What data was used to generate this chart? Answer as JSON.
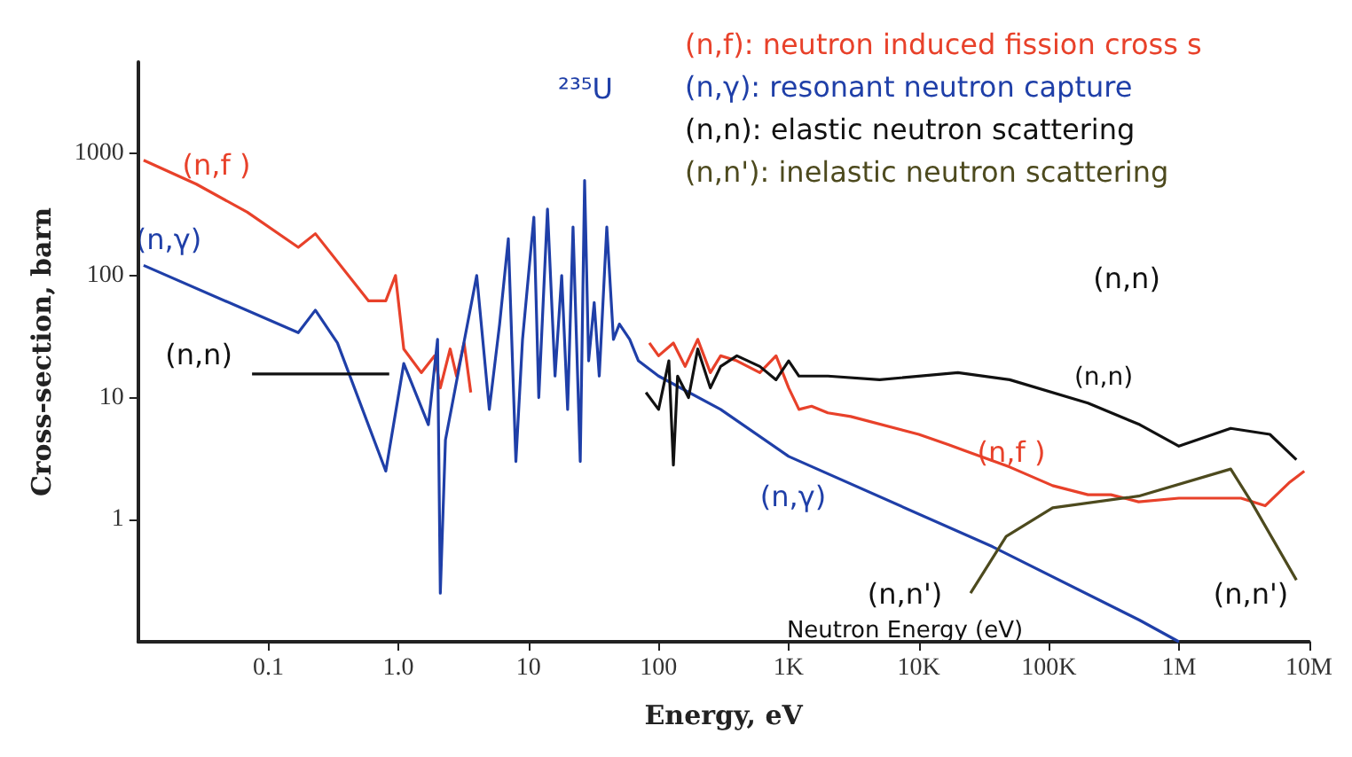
{
  "chart_data": {
    "type": "line",
    "xlabel": "Energy, eV",
    "ylabel": "Cross-section, barn",
    "log": "xy",
    "legend": "top right",
    "grid": false,
    "marker": "none",
    "line_style": "solid",
    "xlim": [
      0.01,
      10000000
    ],
    "ylim": [
      0.1,
      5600
    ],
    "xticks": [
      0.1,
      {
        "value": 1,
        "label": "1.0"
      },
      10,
      100,
      {
        "value": 1000,
        "label": "1K"
      },
      {
        "value": 10000,
        "label": "10K"
      },
      {
        "value": 100000,
        "label": "100K"
      },
      {
        "value": 1000000,
        "label": "1M"
      },
      {
        "value": 10000000,
        "label": "10M"
      }
    ],
    "yticks": [
      1,
      10,
      100,
      1000
    ],
    "series": [
      {
        "name": "(n,f): neutron induced fission cross s",
        "color": "#e8412a",
        "x": [
          0.011,
          0.028,
          0.069,
          0.17,
          0.23,
          0.59,
          0.8,
          0.95,
          1.1,
          1.5,
          1.9,
          2.1,
          2.5,
          2.8,
          3.2,
          3.6,
          70,
          85,
          100,
          130,
          160,
          200,
          250,
          300,
          400,
          600,
          800,
          1000,
          1200,
          1500,
          2000,
          3000,
          10000,
          17000,
          50000,
          107000,
          200000,
          300000,
          490000,
          1000000,
          3000000,
          4600000,
          7000000,
          9200000
        ],
        "values": [
          880,
          560,
          330,
          170,
          220,
          62,
          62,
          100,
          25,
          16,
          22,
          12,
          25,
          15,
          28,
          11,
          null,
          28,
          22,
          28,
          18,
          30,
          16,
          22,
          20,
          16,
          22,
          12,
          8,
          8.5,
          7.5,
          7,
          5,
          4.1,
          2.7,
          1.9,
          1.6,
          1.6,
          1.4,
          1.5,
          1.5,
          1.3,
          2,
          2.5
        ]
      },
      {
        "name": "(n,γ): resonant neutron capture",
        "color": "#1f3fa8",
        "x": [
          0.011,
          0.17,
          0.23,
          0.34,
          0.8,
          1.1,
          1.7,
          2,
          2.1,
          2.3,
          3,
          4,
          5,
          6,
          7,
          8,
          9,
          11,
          12,
          14,
          16,
          18,
          20,
          22,
          25,
          27,
          29,
          32,
          35,
          40,
          45,
          50,
          60,
          70,
          100,
          300,
          1000,
          37000,
          500000,
          1000000
        ],
        "values": [
          121,
          34,
          52,
          28,
          2.5,
          19,
          6,
          30,
          0.25,
          4.5,
          20,
          100,
          8,
          40,
          200,
          3,
          30,
          300,
          10,
          350,
          15,
          100,
          8,
          250,
          3,
          600,
          20,
          60,
          15,
          250,
          30,
          40,
          30,
          20,
          15,
          8,
          3.3,
          0.6,
          0.15,
          0.1
        ]
      },
      {
        "name": "(n,n): elastic neutron scattering",
        "color": "#111111",
        "x": [
          0.075,
          0.85,
          50,
          80,
          100,
          120,
          130,
          140,
          170,
          200,
          250,
          300,
          400,
          600,
          800,
          1000,
          1200,
          2000,
          5000,
          20000,
          50000,
          200000,
          500000,
          1000000,
          2500000,
          5000000,
          8000000
        ],
        "values": [
          15.6,
          15.6,
          null,
          11,
          8,
          20,
          2.8,
          15,
          10,
          25,
          12,
          18,
          22,
          18,
          14,
          20,
          15,
          15,
          14,
          16,
          14,
          9,
          6,
          4,
          5.6,
          5,
          3.1
        ]
      },
      {
        "name": "(n,n'): inelastic neutron scattering",
        "color": "#4d4a1e",
        "x": [
          25000,
          47000,
          107000,
          490000,
          2500000,
          3600000,
          8000000
        ],
        "values": [
          0.25,
          0.73,
          1.25,
          1.56,
          2.6,
          1.4,
          0.32
        ]
      }
    ],
    "annotations": [
      "(n,f )",
      "(n,γ)",
      "(n,n)",
      "²³⁵U",
      "(n,n)",
      "(n,n)",
      "(n,f )",
      "(n,γ)",
      "(n,n')",
      "(n,n')",
      "Neutron Energy (eV)"
    ]
  }
}
